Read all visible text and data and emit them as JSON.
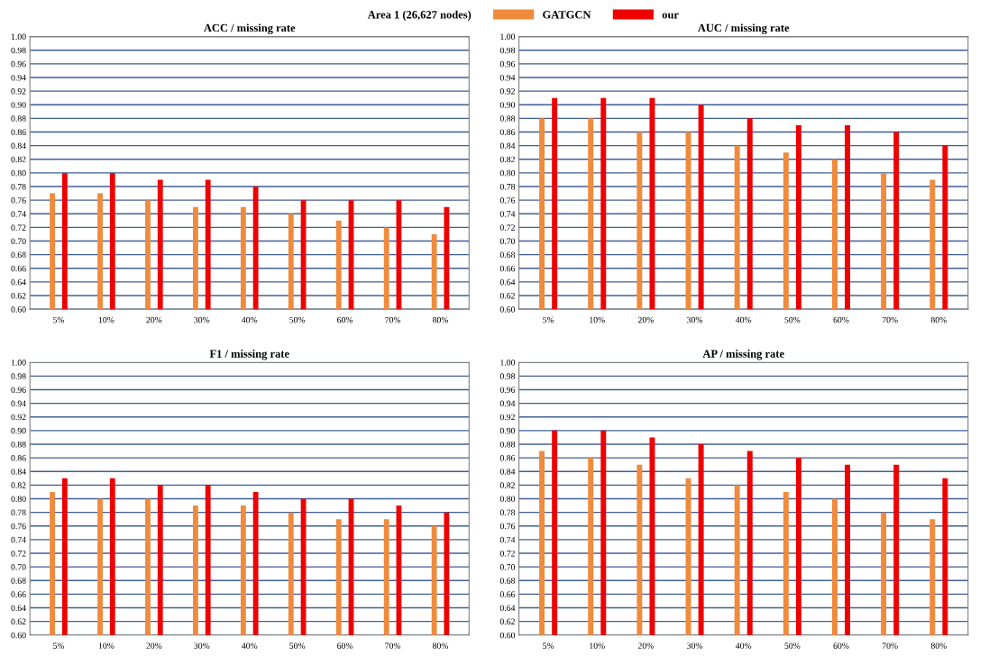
{
  "chart_data": [
    {
      "type": "bar",
      "title": "ACC / missing rate",
      "legend_title": "Area 1 (26,627 nodes)",
      "legend": "top",
      "categories": [
        "5%",
        "10%",
        "20%",
        "30%",
        "40%",
        "50%",
        "60%",
        "70%",
        "80%"
      ],
      "ylim": [
        0.6,
        1.0
      ],
      "yticks": [
        {
          "value": 0.6,
          "label": "0.60"
        },
        {
          "value": 0.62,
          "label": "0.62"
        },
        {
          "value": 0.64,
          "label": "0.64"
        },
        {
          "value": 0.66,
          "label": "0.66"
        },
        {
          "value": 0.68,
          "label": "0.68"
        },
        {
          "value": 0.7,
          "label": "0.70"
        },
        {
          "value": 0.72,
          "label": "0.72"
        },
        {
          "value": 0.74,
          "label": "0.74"
        },
        {
          "value": 0.76,
          "label": "0.76"
        },
        {
          "value": 0.78,
          "label": "0.78"
        },
        {
          "value": 0.8,
          "label": "0.80"
        },
        {
          "value": 0.82,
          "label": "0.82"
        },
        {
          "value": 0.84,
          "label": "0.84"
        },
        {
          "value": 0.86,
          "label": "0.86"
        },
        {
          "value": 0.88,
          "label": "0.88"
        },
        {
          "value": 0.9,
          "label": "0.90"
        },
        {
          "value": 0.92,
          "label": "0.92"
        },
        {
          "value": 0.94,
          "label": "0.94"
        },
        {
          "value": 0.96,
          "label": "0.96"
        },
        {
          "value": 0.98,
          "label": "0.98"
        },
        {
          "value": 1.0,
          "label": "1.00"
        }
      ],
      "grid": "y",
      "series": [
        {
          "name": "GATGCN",
          "color": "#f08a3c",
          "values": [
            0.77,
            0.77,
            0.76,
            0.75,
            0.75,
            0.74,
            0.73,
            0.72,
            0.71
          ]
        },
        {
          "name": "our",
          "color": "#ee0000",
          "values": [
            0.8,
            0.8,
            0.79,
            0.79,
            0.78,
            0.76,
            0.76,
            0.76,
            0.75
          ]
        }
      ]
    },
    {
      "type": "bar",
      "title": "AUC / missing rate",
      "categories": [
        "5%",
        "10%",
        "20%",
        "30%",
        "40%",
        "50%",
        "60%",
        "70%",
        "80%"
      ],
      "ylim": [
        0.6,
        1.0
      ],
      "yticks": [
        {
          "value": 0.6,
          "label": "0.60"
        },
        {
          "value": 0.62,
          "label": "0.62"
        },
        {
          "value": 0.64,
          "label": "0.64"
        },
        {
          "value": 0.66,
          "label": "0.66"
        },
        {
          "value": 0.68,
          "label": "0.68"
        },
        {
          "value": 0.7,
          "label": "0.70"
        },
        {
          "value": 0.72,
          "label": "0.72"
        },
        {
          "value": 0.74,
          "label": "0.74"
        },
        {
          "value": 0.76,
          "label": "0.76"
        },
        {
          "value": 0.78,
          "label": "0.78"
        },
        {
          "value": 0.8,
          "label": "0.80"
        },
        {
          "value": 0.82,
          "label": "0.82"
        },
        {
          "value": 0.84,
          "label": "0.84"
        },
        {
          "value": 0.86,
          "label": "0.86"
        },
        {
          "value": 0.88,
          "label": "0.88"
        },
        {
          "value": 0.9,
          "label": "0.90"
        },
        {
          "value": 0.92,
          "label": "0.92"
        },
        {
          "value": 0.94,
          "label": "0.94"
        },
        {
          "value": 0.96,
          "label": "0.96"
        },
        {
          "value": 0.98,
          "label": "0.98"
        },
        {
          "value": 1.0,
          "label": "1.00"
        }
      ],
      "grid": "y",
      "series": [
        {
          "color": "#f08a3c",
          "values": [
            0.88,
            0.88,
            0.86,
            0.86,
            0.84,
            0.83,
            0.82,
            0.8,
            0.79
          ]
        },
        {
          "color": "#ee0000",
          "values": [
            0.91,
            0.91,
            0.91,
            0.9,
            0.88,
            0.87,
            0.87,
            0.86,
            0.84
          ]
        }
      ]
    },
    {
      "type": "bar",
      "title": "F1 / missing rate",
      "categories": [
        "5%",
        "10%",
        "20%",
        "30%",
        "40%",
        "50%",
        "60%",
        "70%",
        "80%"
      ],
      "ylim": [
        0.6,
        1.0
      ],
      "yticks": [
        {
          "value": 0.6,
          "label": "0.60"
        },
        {
          "value": 0.62,
          "label": "0.62"
        },
        {
          "value": 0.64,
          "label": "0.64"
        },
        {
          "value": 0.66,
          "label": "0.66"
        },
        {
          "value": 0.68,
          "label": "0.68"
        },
        {
          "value": 0.7,
          "label": "0.70"
        },
        {
          "value": 0.72,
          "label": "0.72"
        },
        {
          "value": 0.74,
          "label": "0.74"
        },
        {
          "value": 0.76,
          "label": "0.76"
        },
        {
          "value": 0.78,
          "label": "0.78"
        },
        {
          "value": 0.8,
          "label": "0.80"
        },
        {
          "value": 0.82,
          "label": "0.82"
        },
        {
          "value": 0.84,
          "label": "0.84"
        },
        {
          "value": 0.86,
          "label": "0.86"
        },
        {
          "value": 0.88,
          "label": "0.88"
        },
        {
          "value": 0.9,
          "label": "0.90"
        },
        {
          "value": 0.92,
          "label": "0.92"
        },
        {
          "value": 0.94,
          "label": "0.94"
        },
        {
          "value": 0.96,
          "label": "0.96"
        },
        {
          "value": 0.98,
          "label": "0.98"
        },
        {
          "value": 1.0,
          "label": "1.00"
        }
      ],
      "grid": "y",
      "series": [
        {
          "color": "#f08a3c",
          "values": [
            0.81,
            0.8,
            0.8,
            0.79,
            0.79,
            0.78,
            0.77,
            0.77,
            0.76
          ]
        },
        {
          "color": "#ee0000",
          "values": [
            0.83,
            0.83,
            0.82,
            0.82,
            0.81,
            0.8,
            0.8,
            0.79,
            0.78
          ]
        }
      ]
    },
    {
      "type": "bar",
      "title": "AP / missing rate",
      "categories": [
        "5%",
        "10%",
        "20%",
        "30%",
        "40%",
        "50%",
        "60%",
        "70%",
        "80%"
      ],
      "ylim": [
        0.6,
        1.0
      ],
      "yticks": [
        {
          "value": 0.6,
          "label": "0.60"
        },
        {
          "value": 0.62,
          "label": "0.62"
        },
        {
          "value": 0.64,
          "label": "0.64"
        },
        {
          "value": 0.66,
          "label": "0.66"
        },
        {
          "value": 0.68,
          "label": "0.68"
        },
        {
          "value": 0.7,
          "label": "0.70"
        },
        {
          "value": 0.72,
          "label": "0.72"
        },
        {
          "value": 0.74,
          "label": "0.74"
        },
        {
          "value": 0.76,
          "label": "0.76"
        },
        {
          "value": 0.78,
          "label": "0.78"
        },
        {
          "value": 0.8,
          "label": "0.80"
        },
        {
          "value": 0.82,
          "label": "0.82"
        },
        {
          "value": 0.84,
          "label": "0.84"
        },
        {
          "value": 0.86,
          "label": "0.86"
        },
        {
          "value": 0.88,
          "label": "0.88"
        },
        {
          "value": 0.9,
          "label": "0.90"
        },
        {
          "value": 0.92,
          "label": "0.92"
        },
        {
          "value": 0.94,
          "label": "0.94"
        },
        {
          "value": 0.96,
          "label": "0.96"
        },
        {
          "value": 0.98,
          "label": "0.98"
        },
        {
          "value": 1.0,
          "label": "1.00"
        }
      ],
      "grid": "y",
      "series": [
        {
          "color": "#f08a3c",
          "values": [
            0.87,
            0.86,
            0.85,
            0.83,
            0.82,
            0.81,
            0.8,
            0.78,
            0.77
          ]
        },
        {
          "color": "#ee0000",
          "values": [
            0.9,
            0.9,
            0.89,
            0.88,
            0.87,
            0.86,
            0.85,
            0.85,
            0.83
          ]
        }
      ]
    }
  ]
}
